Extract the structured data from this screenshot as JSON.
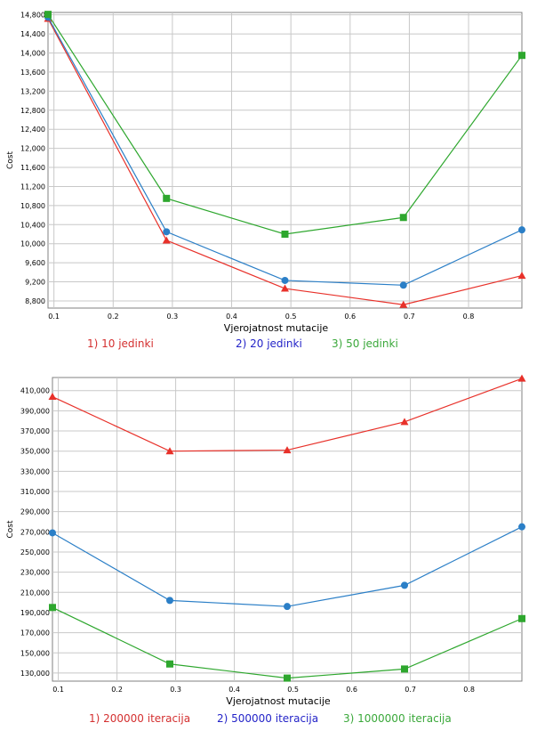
{
  "chart_data": [
    {
      "type": "line",
      "xlabel": "Vjerojatnost mutacije",
      "ylabel": "Cost",
      "x": [
        0.09,
        0.29,
        0.49,
        0.69,
        0.89
      ],
      "x_ticks": [
        "0.1",
        "0.2",
        "0.3",
        "0.4",
        "0.5",
        "0.6",
        "0.7",
        "0.8"
      ],
      "x_tick_values": [
        0.1,
        0.2,
        0.3,
        0.4,
        0.5,
        0.6,
        0.7,
        0.8
      ],
      "xlim": [
        0.09,
        0.89
      ],
      "y_ticks": [
        "14,800",
        "14,400",
        "14,000",
        "13,600",
        "13,200",
        "12,800",
        "12,400",
        "12,000",
        "11,600",
        "11,200",
        "10,800",
        "10,400",
        "10,000",
        "9,600",
        "9,200",
        "8,800"
      ],
      "y_tick_values": [
        14800,
        14400,
        14000,
        13600,
        13200,
        12800,
        12400,
        12000,
        11600,
        11200,
        10800,
        10400,
        10000,
        9600,
        9200,
        8800
      ],
      "ylim": [
        8650,
        14850
      ],
      "grid": true,
      "legend_position": "bottom",
      "series": [
        {
          "name": "1) 10 jedinki",
          "color": "#e8312a",
          "marker": "triangle",
          "values": [
            14720,
            10070,
            9060,
            8720,
            9330
          ]
        },
        {
          "name": "2) 20 jedinki",
          "color": "#2b7fc7",
          "marker": "circle",
          "values": [
            14750,
            10250,
            9230,
            9130,
            10290
          ]
        },
        {
          "name": "3) 50 jedinki",
          "color": "#2ea72e",
          "marker": "square",
          "values": [
            14810,
            10950,
            10200,
            10550,
            13950
          ]
        }
      ],
      "legend_colors": [
        "#d43030",
        "#2424c8",
        "#3aa83a"
      ]
    },
    {
      "type": "line",
      "xlabel": "Vjerojatnost mutacije",
      "ylabel": "Cost",
      "x": [
        0.09,
        0.29,
        0.49,
        0.69,
        0.89
      ],
      "x_ticks": [
        "0.1",
        "0.2",
        "0.3",
        "0.4",
        "0.5",
        "0.6",
        "0.7",
        "0.8"
      ],
      "x_tick_values": [
        0.1,
        0.2,
        0.3,
        0.4,
        0.5,
        0.6,
        0.7,
        0.8
      ],
      "xlim": [
        0.09,
        0.89
      ],
      "y_ticks": [
        "410,000",
        "390,000",
        "370,000",
        "350,000",
        "330,000",
        "310,000",
        "290,000",
        "270,000",
        "250,000",
        "230,000",
        "210,000",
        "190,000",
        "170,000",
        "150,000",
        "130,000"
      ],
      "y_tick_values": [
        410000,
        390000,
        370000,
        350000,
        330000,
        310000,
        290000,
        270000,
        250000,
        230000,
        210000,
        190000,
        170000,
        150000,
        130000
      ],
      "ylim": [
        122000,
        423000
      ],
      "grid": true,
      "legend_position": "bottom",
      "series": [
        {
          "name": "1) 200000 iteracija",
          "color": "#e8312a",
          "marker": "triangle",
          "values": [
            404000,
            350000,
            351000,
            379000,
            422000
          ]
        },
        {
          "name": "2) 500000 iteracija",
          "color": "#2b7fc7",
          "marker": "circle",
          "values": [
            269000,
            202000,
            196000,
            217000,
            275000
          ]
        },
        {
          "name": "3) 1000000 iteracija",
          "color": "#2ea72e",
          "marker": "square",
          "values": [
            195000,
            139000,
            125000,
            134000,
            184000
          ]
        }
      ],
      "legend_colors": [
        "#d43030",
        "#2424c8",
        "#3aa83a"
      ]
    }
  ]
}
